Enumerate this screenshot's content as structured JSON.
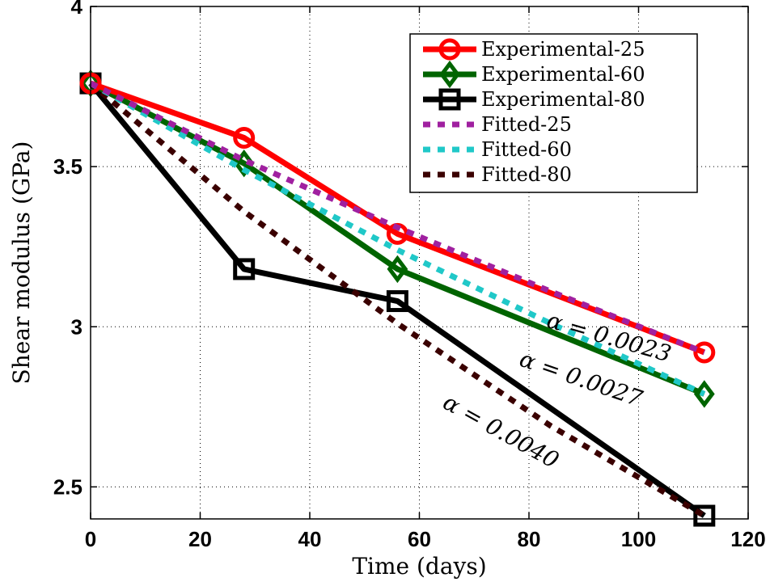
{
  "chart_data": {
    "type": "line",
    "xlabel": "Time (days)",
    "ylabel": "Shear modulus (GPa)",
    "xlim": [
      0,
      120
    ],
    "ylim": [
      2.4,
      4.0
    ],
    "xticks": [
      0,
      20,
      40,
      60,
      80,
      100,
      120
    ],
    "xtick_labels": [
      "0",
      "20",
      "40",
      "60",
      "80",
      "100",
      "120"
    ],
    "yticks": [
      2.5,
      3.0,
      3.5,
      4.0
    ],
    "ytick_labels": [
      "2.5",
      "3",
      "3.5",
      "4"
    ],
    "grid": true,
    "legend_position": "top-right",
    "series": [
      {
        "name": "Experimental-25",
        "color": "#ff0000",
        "style": "solid",
        "marker": "circle",
        "x": [
          0,
          28,
          56,
          112
        ],
        "y": [
          3.76,
          3.59,
          3.29,
          2.92
        ]
      },
      {
        "name": "Experimental-60",
        "color": "#006400",
        "style": "solid",
        "marker": "diamond",
        "x": [
          0,
          28,
          56,
          112
        ],
        "y": [
          3.76,
          3.51,
          3.18,
          2.79
        ]
      },
      {
        "name": "Experimental-80",
        "color": "#000000",
        "style": "solid",
        "marker": "square",
        "x": [
          0,
          28,
          56,
          112
        ],
        "y": [
          3.76,
          3.18,
          3.08,
          2.41
        ]
      },
      {
        "name": "Fitted-25",
        "color": "#a020a0",
        "style": "dotted",
        "marker": "none",
        "x": [
          0,
          28,
          56,
          84,
          112
        ],
        "y": [
          3.76,
          3.52,
          3.31,
          3.11,
          2.92
        ]
      },
      {
        "name": "Fitted-60",
        "color": "#20c8c8",
        "style": "dotted",
        "marker": "none",
        "x": [
          0,
          28,
          56,
          84,
          112
        ],
        "y": [
          3.76,
          3.49,
          3.24,
          3.01,
          2.79
        ]
      },
      {
        "name": "Fitted-80",
        "color": "#3a0000",
        "style": "dotted",
        "marker": "none",
        "x": [
          0,
          28,
          56,
          84,
          112
        ],
        "y": [
          3.76,
          3.36,
          3.01,
          2.69,
          2.41
        ]
      }
    ],
    "annotations": [
      {
        "text": "α = 0.0023",
        "x": 83,
        "y": 3.0
      },
      {
        "text": "α = 0.0027",
        "x": 78,
        "y": 2.88
      },
      {
        "text": "α = 0.0040",
        "x": 64,
        "y": 2.75
      }
    ]
  }
}
